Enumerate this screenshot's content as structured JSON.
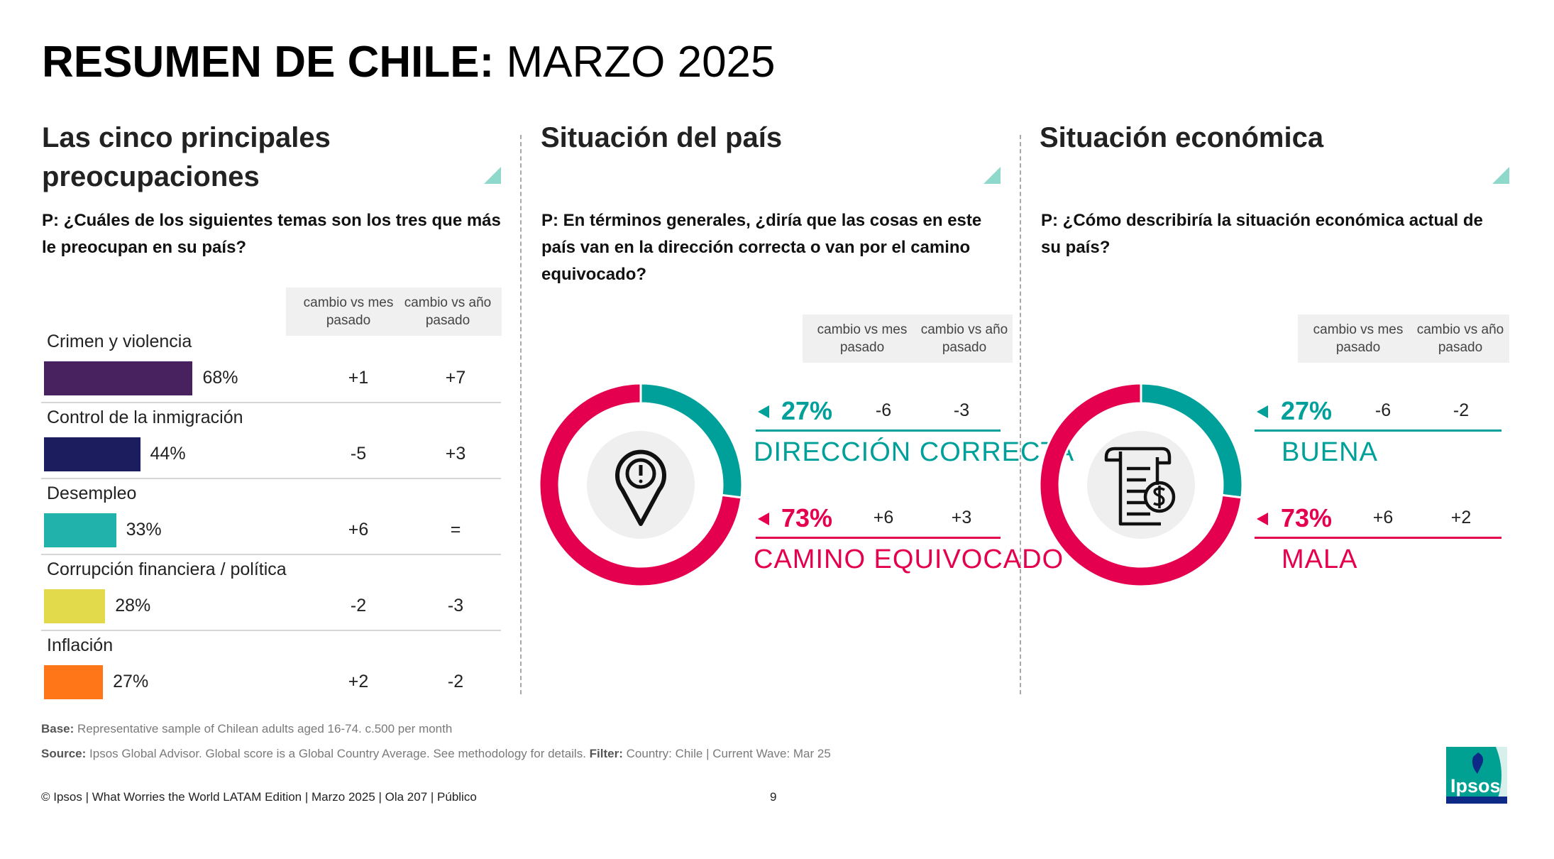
{
  "title": {
    "bold": "RESUMEN DE CHILE:",
    "light": "MARZO 2025"
  },
  "colors": {
    "teal": "#00a09a",
    "magenta": "#e5004f",
    "header_bg": "#f0f0f0"
  },
  "columns_header": {
    "month": "cambio vs mes pasado",
    "year": "cambio vs año pasado"
  },
  "left": {
    "heading": "Las cinco principales preocupaciones",
    "question": "P: ¿Cuáles de los siguientes temas son los tres que más le preocupan en su país?"
  },
  "middle": {
    "heading": "Situación del país",
    "question": "P: En términos generales, ¿diría que las cosas en este país van en la dirección correcta o van por el camino equivocado?",
    "icon": "map-pin-alert-icon"
  },
  "right": {
    "heading": "Situación económica",
    "question": "P: ¿Cómo describiría la situación económica actual de su país?",
    "icon": "invoice-dollar-icon"
  },
  "chart_data": [
    {
      "type": "bar",
      "categories": [
        "Crimen y violencia",
        "Control de la inmigración",
        "Desempleo",
        "Corrupción financiera / política",
        "Inflación"
      ],
      "values": [
        68,
        44,
        33,
        28,
        27
      ],
      "value_labels": [
        "68%",
        "44%",
        "33%",
        "28%",
        "27%"
      ],
      "colors": [
        "#48215f",
        "#1b1d5e",
        "#21b2ac",
        "#e2da4a",
        "#ff7618"
      ],
      "change_vs_month": [
        "+1",
        "-5",
        "+6",
        "-2",
        "+2"
      ],
      "change_vs_year": [
        "+7",
        "+3",
        "=",
        "-3",
        "-2"
      ],
      "xlim": [
        0,
        100
      ]
    },
    {
      "type": "pie",
      "labels": [
        "DIRECCIÓN CORRECTA",
        "CAMINO EQUIVOCADO"
      ],
      "values": [
        27,
        73
      ],
      "value_labels": [
        "27%",
        "73%"
      ],
      "colors": [
        "#00a09a",
        "#e5004f"
      ],
      "change_vs_month": [
        "-6",
        "+6"
      ],
      "change_vs_year": [
        "-3",
        "+3"
      ]
    },
    {
      "type": "pie",
      "labels": [
        "BUENA",
        "MALA"
      ],
      "values": [
        27,
        73
      ],
      "value_labels": [
        "27%",
        "73%"
      ],
      "colors": [
        "#00a09a",
        "#e5004f"
      ],
      "change_vs_month": [
        "-6",
        "+6"
      ],
      "change_vs_year": [
        "-2",
        "+2"
      ]
    }
  ],
  "footnotes": {
    "base_label": "Base:",
    "base_text": "Representative sample of Chilean adults aged 16-74. c.500 per month",
    "source_label": "Source:",
    "source_text": "Ipsos Global Advisor. Global score is a Global Country Average. See methodology for details.",
    "filter_label": "Filter:",
    "filter_text": "Country: Chile | Current Wave: Mar 25"
  },
  "footer": {
    "copyright": "© Ipsos | What Worries the World LATAM Edition | Marzo 2025 | Ola 207 | Público",
    "page_number": "9",
    "logo_text": "Ipsos"
  }
}
